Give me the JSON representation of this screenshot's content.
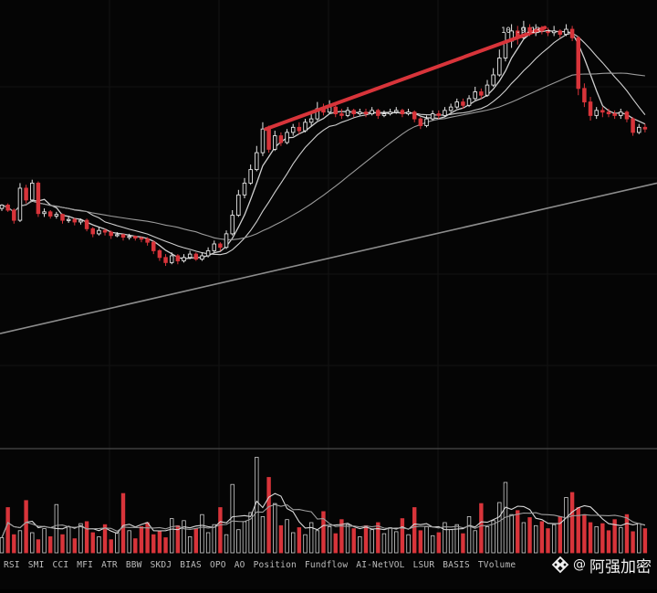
{
  "price_label": "10..9.13 →",
  "indicator_tabs": [
    "RSI",
    "SMI",
    "CCI",
    "MFI",
    "ATR",
    "BBW",
    "SKDJ",
    "BIAS",
    "OPO",
    "AO",
    "Position",
    "Fundflow",
    "AI-NetVOL",
    "LSUR",
    "BASIS",
    "TVolume"
  ],
  "watermark": {
    "at": "@",
    "name": "阿强加密",
    "logo": "binance-square-logo"
  },
  "colors": {
    "up": "#e6e6e6",
    "down": "#d8343a",
    "trend": "#d8343a",
    "ma_fast": "#cfcfcf",
    "ma_slow": "#9a9a9a",
    "ma_long": "#8c8c8c"
  },
  "chart_data": {
    "type": "candlestick",
    "candles": [
      [
        0.1,
        0.3,
        -0.05,
        0.35
      ],
      [
        0.3,
        0.0,
        -0.1,
        0.4
      ],
      [
        0.0,
        -0.6,
        -0.8,
        0.1
      ],
      [
        -0.6,
        1.3,
        -0.7,
        1.6
      ],
      [
        1.3,
        0.6,
        0.4,
        1.5
      ],
      [
        0.6,
        1.6,
        0.5,
        1.8
      ],
      [
        1.6,
        -0.2,
        -0.4,
        1.7
      ],
      [
        -0.2,
        -0.1,
        -0.4,
        0.1
      ],
      [
        -0.1,
        -0.35,
        -0.5,
        0.0
      ],
      [
        -0.35,
        -0.25,
        -0.5,
        -0.1
      ],
      [
        -0.25,
        -0.6,
        -0.8,
        -0.2
      ],
      [
        -0.6,
        -0.55,
        -0.75,
        -0.4
      ],
      [
        -0.55,
        -0.7,
        -0.9,
        -0.45
      ],
      [
        -0.7,
        -0.6,
        -0.85,
        -0.5
      ],
      [
        -0.6,
        -1.1,
        -1.25,
        -0.5
      ],
      [
        -1.1,
        -1.4,
        -1.6,
        -1.0
      ],
      [
        -1.4,
        -1.2,
        -1.5,
        -1.0
      ],
      [
        -1.2,
        -1.3,
        -1.5,
        -1.1
      ],
      [
        -1.3,
        -1.5,
        -1.7,
        -1.2
      ],
      [
        -1.5,
        -1.45,
        -1.6,
        -1.3
      ],
      [
        -1.45,
        -1.6,
        -1.8,
        -1.4
      ],
      [
        -1.6,
        -1.55,
        -1.75,
        -1.4
      ],
      [
        -1.55,
        -1.65,
        -1.8,
        -1.5
      ],
      [
        -1.65,
        -1.7,
        -1.9,
        -1.55
      ],
      [
        -1.7,
        -1.9,
        -2.1,
        -1.6
      ],
      [
        -1.9,
        -2.4,
        -2.6,
        -1.8
      ],
      [
        -2.4,
        -2.8,
        -3.0,
        -2.3
      ],
      [
        -2.8,
        -3.1,
        -3.3,
        -2.6
      ],
      [
        -3.1,
        -2.7,
        -3.2,
        -2.5
      ],
      [
        -2.7,
        -3.0,
        -3.2,
        -2.6
      ],
      [
        -3.0,
        -2.8,
        -3.1,
        -2.6
      ],
      [
        -2.8,
        -2.6,
        -2.9,
        -2.4
      ],
      [
        -2.6,
        -2.9,
        -3.0,
        -2.5
      ],
      [
        -2.9,
        -2.7,
        -3.0,
        -2.5
      ],
      [
        -2.7,
        -2.4,
        -2.8,
        -2.2
      ],
      [
        -2.4,
        -2.0,
        -2.5,
        -1.8
      ],
      [
        -2.0,
        -2.2,
        -2.4,
        -1.9
      ],
      [
        -2.2,
        -1.4,
        -2.3,
        -1.2
      ],
      [
        -1.4,
        -0.3,
        -1.5,
        0.0
      ],
      [
        -0.3,
        0.9,
        -0.4,
        1.2
      ],
      [
        0.9,
        1.6,
        0.7,
        1.9
      ],
      [
        1.6,
        2.4,
        1.5,
        2.7
      ],
      [
        2.4,
        3.4,
        2.3,
        3.8
      ],
      [
        3.4,
        4.8,
        3.2,
        5.2
      ],
      [
        4.8,
        3.6,
        3.4,
        5.0
      ],
      [
        3.6,
        4.4,
        3.5,
        4.7
      ],
      [
        4.4,
        4.0,
        3.8,
        4.6
      ],
      [
        4.0,
        4.6,
        3.9,
        4.8
      ],
      [
        4.6,
        4.9,
        4.4,
        5.1
      ],
      [
        4.9,
        4.7,
        4.5,
        5.2
      ],
      [
        4.7,
        5.2,
        4.6,
        5.4
      ],
      [
        5.2,
        5.4,
        5.0,
        5.7
      ],
      [
        5.4,
        6.0,
        5.3,
        6.4
      ],
      [
        6.0,
        5.8,
        5.6,
        6.3
      ],
      [
        5.8,
        6.1,
        5.7,
        6.5
      ],
      [
        6.1,
        5.7,
        5.5,
        6.3
      ],
      [
        5.7,
        5.6,
        5.4,
        6.0
      ],
      [
        5.6,
        5.9,
        5.5,
        6.1
      ],
      [
        5.9,
        5.7,
        5.5,
        6.0
      ],
      [
        5.7,
        5.8,
        5.6,
        6.0
      ],
      [
        5.8,
        5.7,
        5.5,
        6.0
      ],
      [
        5.7,
        5.9,
        5.6,
        6.1
      ],
      [
        5.9,
        5.6,
        5.4,
        6.0
      ],
      [
        5.6,
        5.7,
        5.5,
        5.9
      ],
      [
        5.7,
        5.8,
        5.6,
        6.0
      ],
      [
        5.8,
        5.9,
        5.7,
        6.1
      ],
      [
        5.9,
        5.7,
        5.5,
        6.0
      ],
      [
        5.7,
        5.8,
        5.6,
        6.0
      ],
      [
        5.8,
        5.4,
        5.2,
        5.9
      ],
      [
        5.4,
        5.0,
        4.8,
        5.5
      ],
      [
        5.0,
        5.4,
        4.9,
        5.6
      ],
      [
        5.4,
        5.7,
        5.3,
        5.9
      ],
      [
        5.7,
        5.6,
        5.4,
        5.9
      ],
      [
        5.6,
        5.9,
        5.5,
        6.1
      ],
      [
        5.9,
        6.1,
        5.8,
        6.3
      ],
      [
        6.1,
        6.4,
        6.0,
        6.6
      ],
      [
        6.4,
        6.2,
        6.0,
        6.6
      ],
      [
        6.2,
        6.6,
        6.1,
        6.8
      ],
      [
        6.6,
        7.0,
        6.5,
        7.3
      ],
      [
        7.0,
        6.8,
        6.6,
        7.2
      ],
      [
        6.8,
        7.4,
        6.7,
        7.7
      ],
      [
        7.4,
        8.0,
        7.3,
        8.4
      ],
      [
        8.0,
        9.0,
        7.9,
        9.5
      ],
      [
        9.0,
        10.0,
        8.8,
        10.5
      ],
      [
        10.0,
        10.6,
        9.6,
        11.0
      ],
      [
        10.6,
        10.2,
        9.8,
        10.9
      ],
      [
        10.2,
        10.8,
        10.1,
        11.2
      ],
      [
        10.8,
        10.5,
        10.3,
        11.0
      ],
      [
        10.5,
        10.7,
        10.3,
        11.0
      ],
      [
        10.7,
        10.6,
        10.4,
        10.9
      ],
      [
        10.6,
        10.5,
        10.3,
        10.8
      ],
      [
        10.5,
        10.6,
        10.3,
        10.9
      ],
      [
        10.6,
        10.4,
        10.2,
        10.7
      ],
      [
        10.4,
        10.7,
        10.3,
        11.0
      ],
      [
        10.7,
        10.2,
        10.0,
        10.9
      ],
      [
        10.2,
        7.2,
        6.8,
        10.3
      ],
      [
        7.2,
        6.4,
        6.1,
        7.5
      ],
      [
        6.4,
        5.6,
        5.3,
        6.7
      ],
      [
        5.6,
        5.9,
        5.4,
        6.1
      ],
      [
        5.9,
        5.8,
        5.5,
        6.1
      ],
      [
        5.8,
        5.7,
        5.5,
        6.0
      ],
      [
        5.7,
        5.6,
        5.4,
        5.9
      ],
      [
        5.6,
        5.8,
        5.4,
        6.0
      ],
      [
        5.8,
        5.4,
        5.2,
        5.9
      ],
      [
        5.4,
        4.6,
        4.4,
        5.5
      ],
      [
        4.6,
        4.9,
        4.5,
        5.1
      ],
      [
        4.9,
        4.8,
        4.6,
        5.1
      ]
    ],
    "volume": [
      1.5,
      4.5,
      1.8,
      2.2,
      5.2,
      2.0,
      1.3,
      2.4,
      1.6,
      4.8,
      1.8,
      2.6,
      1.4,
      2.9,
      3.1,
      2.0,
      1.6,
      2.8,
      1.3,
      2.0,
      5.9,
      2.2,
      1.4,
      2.6,
      3.0,
      1.8,
      2.1,
      1.5,
      3.4,
      2.7,
      3.2,
      1.6,
      2.4,
      3.8,
      2.0,
      2.8,
      4.5,
      1.8,
      6.8,
      2.3,
      3.1,
      4.0,
      9.5,
      3.6,
      7.5,
      4.9,
      2.7,
      3.3,
      2.0,
      2.5,
      1.8,
      3.0,
      2.2,
      4.1,
      2.6,
      1.9,
      3.3,
      2.8,
      2.4,
      1.6,
      2.7,
      2.3,
      3.0,
      1.9,
      2.5,
      2.1,
      3.4,
      1.8,
      4.5,
      2.2,
      2.6,
      1.7,
      2.0,
      3.0,
      2.3,
      2.8,
      1.9,
      3.6,
      2.2,
      4.9,
      2.6,
      3.2,
      5.0,
      7.0,
      3.8,
      4.2,
      3.0,
      3.5,
      2.7,
      3.1,
      2.4,
      2.8,
      3.6,
      5.5,
      6.0,
      4.5,
      3.8,
      3.0,
      2.6,
      2.9,
      2.2,
      3.3,
      2.5,
      3.8,
      2.1,
      2.9,
      2.4
    ],
    "long_line": [
      -7.3,
      1.6
    ],
    "trendline": [
      [
        43.5,
        4.8
      ],
      [
        89.5,
        10.8
      ]
    ]
  }
}
